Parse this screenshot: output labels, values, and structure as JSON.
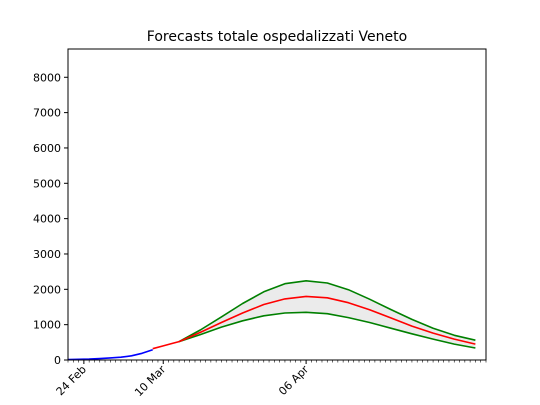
{
  "chart_data": {
    "type": "line",
    "title": "Forecasts totale ospedalizzati Veneto",
    "xlabel": "",
    "ylabel": "",
    "x_start": "2020-02-21",
    "x_end": "2020-05-10",
    "ylim": [
      0,
      8800
    ],
    "yticks": [
      0,
      1000,
      2000,
      3000,
      4000,
      5000,
      6000,
      7000,
      8000
    ],
    "xtick_labels": [
      {
        "date": "2020-02-24",
        "label": "24 Feb"
      },
      {
        "date": "2020-03-10",
        "label": "10 Mar"
      },
      {
        "date": "2020-04-06",
        "label": "06 Apr"
      }
    ],
    "grid": false,
    "legend": "none",
    "colors": {
      "observed": "#0000ff",
      "fit": "#ff0000",
      "forecast": "#ff0000",
      "bounds": "#008000",
      "band": "#ebebeb"
    },
    "series": {
      "observed": {
        "x": [
          "2020-02-21",
          "2020-02-23",
          "2020-02-25",
          "2020-02-27",
          "2020-02-29",
          "2020-03-02",
          "2020-03-04",
          "2020-03-06",
          "2020-03-08"
        ],
        "y": [
          10,
          20,
          25,
          40,
          60,
          80,
          120,
          190,
          290
        ]
      },
      "fit": {
        "x": [
          "2020-03-08",
          "2020-03-10",
          "2020-03-12",
          "2020-03-13"
        ],
        "y": [
          320,
          400,
          480,
          520
        ]
      },
      "forecast": {
        "x": [
          "2020-03-13",
          "2020-03-17",
          "2020-03-21",
          "2020-03-25",
          "2020-03-29",
          "2020-04-02",
          "2020-04-06",
          "2020-04-10",
          "2020-04-14",
          "2020-04-18",
          "2020-04-22",
          "2020-04-26",
          "2020-04-30",
          "2020-05-04",
          "2020-05-08"
        ],
        "y": [
          520,
          780,
          1060,
          1330,
          1570,
          1730,
          1800,
          1760,
          1620,
          1420,
          1190,
          960,
          760,
          590,
          450
        ]
      },
      "upper": {
        "x": [
          "2020-03-13",
          "2020-03-17",
          "2020-03-21",
          "2020-03-25",
          "2020-03-29",
          "2020-04-02",
          "2020-04-06",
          "2020-04-10",
          "2020-04-14",
          "2020-04-18",
          "2020-04-22",
          "2020-04-26",
          "2020-04-30",
          "2020-05-04",
          "2020-05-08"
        ],
        "y": [
          520,
          850,
          1220,
          1600,
          1930,
          2160,
          2240,
          2180,
          1990,
          1720,
          1430,
          1150,
          900,
          700,
          560
        ]
      },
      "lower": {
        "x": [
          "2020-03-13",
          "2020-03-17",
          "2020-03-21",
          "2020-03-25",
          "2020-03-29",
          "2020-04-02",
          "2020-04-06",
          "2020-04-10",
          "2020-04-14",
          "2020-04-18",
          "2020-04-22",
          "2020-04-26",
          "2020-04-30",
          "2020-05-04",
          "2020-05-08"
        ],
        "y": [
          520,
          720,
          930,
          1110,
          1250,
          1330,
          1350,
          1310,
          1200,
          1060,
          900,
          740,
          590,
          450,
          340
        ]
      }
    }
  }
}
